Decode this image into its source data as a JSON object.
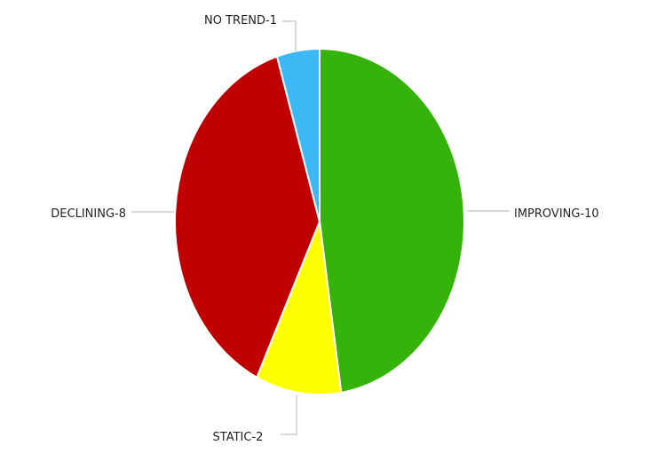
{
  "chart_data": {
    "type": "pie",
    "title": "",
    "start": "top",
    "direction": "clockwise",
    "legend": "none",
    "labels_outside": true,
    "slices": [
      {
        "name": "IMPROVING",
        "value": 10,
        "label": "IMPROVING-10",
        "color": "#36b30a"
      },
      {
        "name": "STATIC",
        "value": 2,
        "label": "STATIC-2",
        "color": "#ffff00"
      },
      {
        "name": "DECLINING",
        "value": 8,
        "label": "DECLINING-8",
        "color": "#c00000"
      },
      {
        "name": "NO TREND",
        "value": 1,
        "label": "NO TREND-1",
        "color": "#3cb9f5"
      }
    ]
  }
}
